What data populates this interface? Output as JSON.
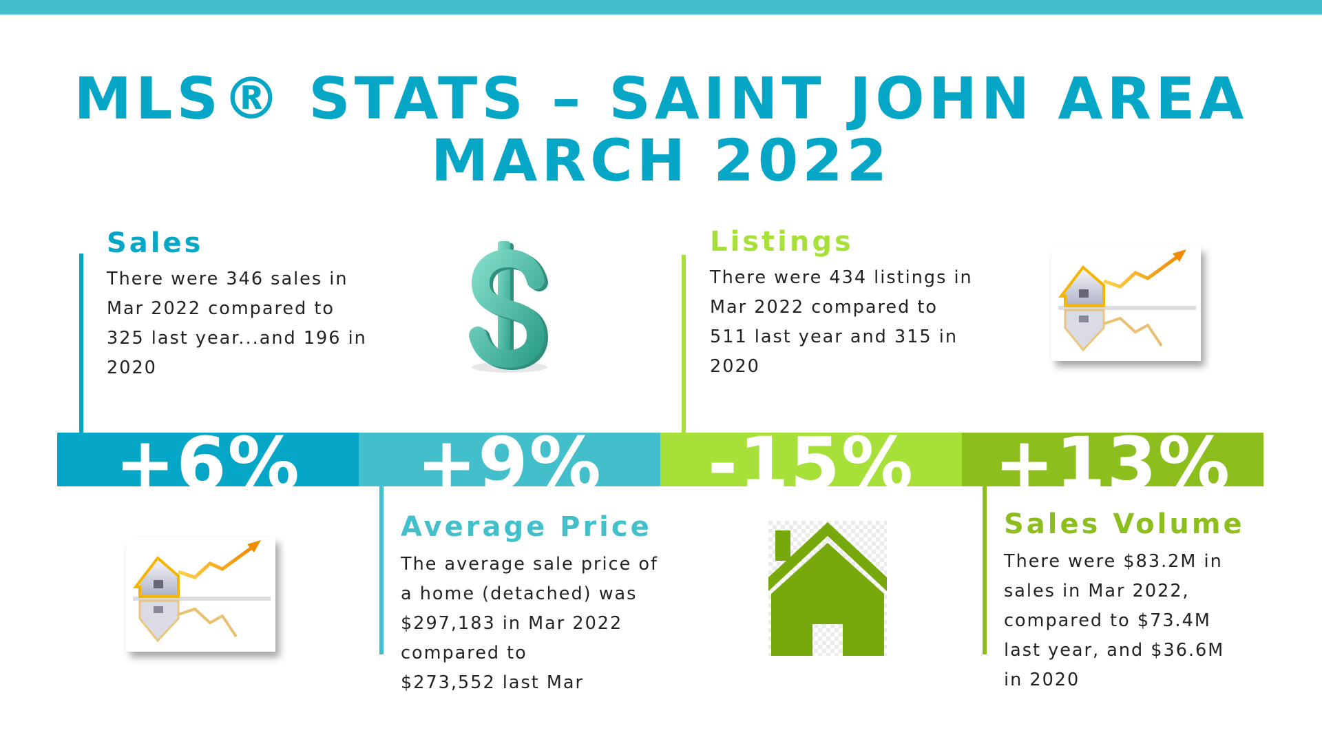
{
  "title": {
    "line1": "MLS® STATS – SAINT JOHN AREA",
    "line2": "MARCH 2022"
  },
  "colors": {
    "top_bar": "#42bfcb",
    "title": "#06a7c6",
    "blue": "#06a7c6",
    "teal": "#42bfcb",
    "light_green": "#a8e03a",
    "green": "#8cbe1e",
    "house_green": "#77a90d",
    "dollar_teal": "#4cc3ac"
  },
  "sales": {
    "heading": "Sales",
    "lines": [
      "There were 346 sales in",
      "Mar 2022 compared to",
      "325 last year...and 196 in",
      "2020"
    ],
    "change": "+6%",
    "icon": "dollar-icon"
  },
  "listings": {
    "heading": "Listings",
    "lines": [
      "There were 434 listings in",
      "Mar 2022 compared to",
      "511 last year and 315 in",
      "2020"
    ],
    "change": "-15%",
    "icon": "house-market-chart-icon"
  },
  "average_price": {
    "heading": "Average Price",
    "lines": [
      "The average sale price of",
      "a home (detached) was",
      "$297,183 in Mar 2022",
      "compared to",
      "$273,552 last Mar"
    ],
    "change": "+9%",
    "icon": "house-market-chart-icon"
  },
  "sales_volume": {
    "heading": "Sales Volume",
    "lines": [
      "There were $83.2M in",
      "sales in Mar 2022,",
      "compared to $73.4M",
      "last year, and $36.6M",
      "in 2020"
    ],
    "change": "+13%",
    "icon": "house-icon"
  }
}
